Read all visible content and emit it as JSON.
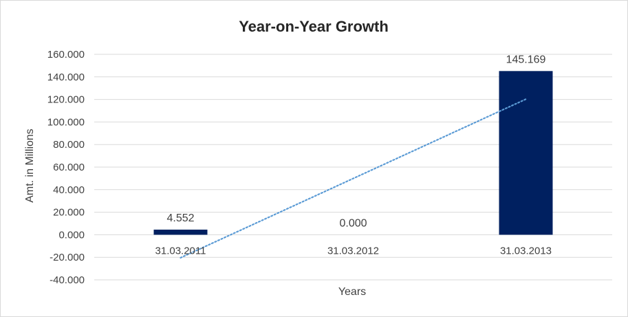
{
  "chart_data": {
    "type": "bar",
    "title": "Year-on-Year Growth",
    "xlabel": "Years",
    "ylabel": "Amt. in Millions",
    "categories": [
      "31.03.2011",
      "31.03.2012",
      "31.03.2013"
    ],
    "values": [
      4.552,
      0.0,
      145.169
    ],
    "data_labels": [
      "4.552",
      "0.000",
      "145.169"
    ],
    "ylim": [
      -40,
      160
    ],
    "y_ticks": [
      {
        "value": 160,
        "label": "160.000"
      },
      {
        "value": 140,
        "label": "140.000"
      },
      {
        "value": 120,
        "label": "120.000"
      },
      {
        "value": 100,
        "label": "100.000"
      },
      {
        "value": 80,
        "label": "80.000"
      },
      {
        "value": 60,
        "label": "60.000"
      },
      {
        "value": 40,
        "label": "40.000"
      },
      {
        "value": 20,
        "label": "20.000"
      },
      {
        "value": 0,
        "label": "0.000"
      },
      {
        "value": -20,
        "label": "-20.000"
      },
      {
        "value": -40,
        "label": "-40.000"
      }
    ],
    "grid": true,
    "legend": "none",
    "trendline": {
      "type": "linear",
      "style": "dotted"
    },
    "colors": {
      "bar": "#002060",
      "trendline": "#5b9bd5",
      "grid": "#d9d9d9"
    }
  }
}
